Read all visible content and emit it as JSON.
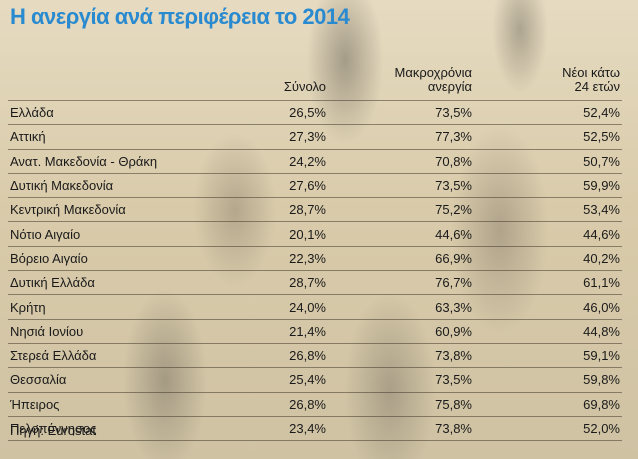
{
  "title": "Η ανεργία ανά περιφέρεια το 2014",
  "source": "Πηγή: Eurostat",
  "colors": {
    "title": "#2a8ad0",
    "text": "#1a1a1a"
  },
  "chart_data": {
    "type": "table",
    "title": "Η ανεργία ανά περιφέρεια το 2014",
    "columns": [
      "",
      "Σύνολο",
      "Μακροχρόνια ανεργία",
      "Νέοι κάτω 24 ετών"
    ],
    "column_lines": [
      [
        ""
      ],
      [
        "Σύνολο"
      ],
      [
        "Μακροχρόνια",
        "ανεργία"
      ],
      [
        "Νέοι κάτω",
        "24 ετών"
      ]
    ],
    "rows": [
      [
        "Ελλάδα",
        "26,5%",
        "73,5%",
        "52,4%"
      ],
      [
        "Αττική",
        "27,3%",
        "77,3%",
        "52,5%"
      ],
      [
        "Ανατ. Μακεδονία - Θράκη",
        "24,2%",
        "70,8%",
        "50,7%"
      ],
      [
        "Δυτική Μακεδονία",
        "27,6%",
        "73,5%",
        "59,9%"
      ],
      [
        "Κεντρική Μακεδονία",
        "28,7%",
        "75,2%",
        "53,4%"
      ],
      [
        "Νότιο Αιγαίο",
        "20,1%",
        "44,6%",
        "44,6%"
      ],
      [
        "Βόρειο Αιγαίο",
        "22,3%",
        "66,9%",
        "40,2%"
      ],
      [
        "Δυτική Ελλάδα",
        "28,7%",
        "76,7%",
        "61,1%"
      ],
      [
        "Κρήτη",
        "24,0%",
        "63,3%",
        "46,0%"
      ],
      [
        "Νησιά Ιονίου",
        "21,4%",
        "60,9%",
        "44,8%"
      ],
      [
        "Στερεά Ελλάδα",
        "26,8%",
        "73,8%",
        "59,1%"
      ],
      [
        "Θεσσαλία",
        "25,4%",
        "73,5%",
        "59,8%"
      ],
      [
        "Ήπειρος",
        "26,8%",
        "75,8%",
        "69,8%"
      ],
      [
        "Πελοπόννησος",
        "23,4%",
        "73,8%",
        "52,0%"
      ]
    ]
  }
}
